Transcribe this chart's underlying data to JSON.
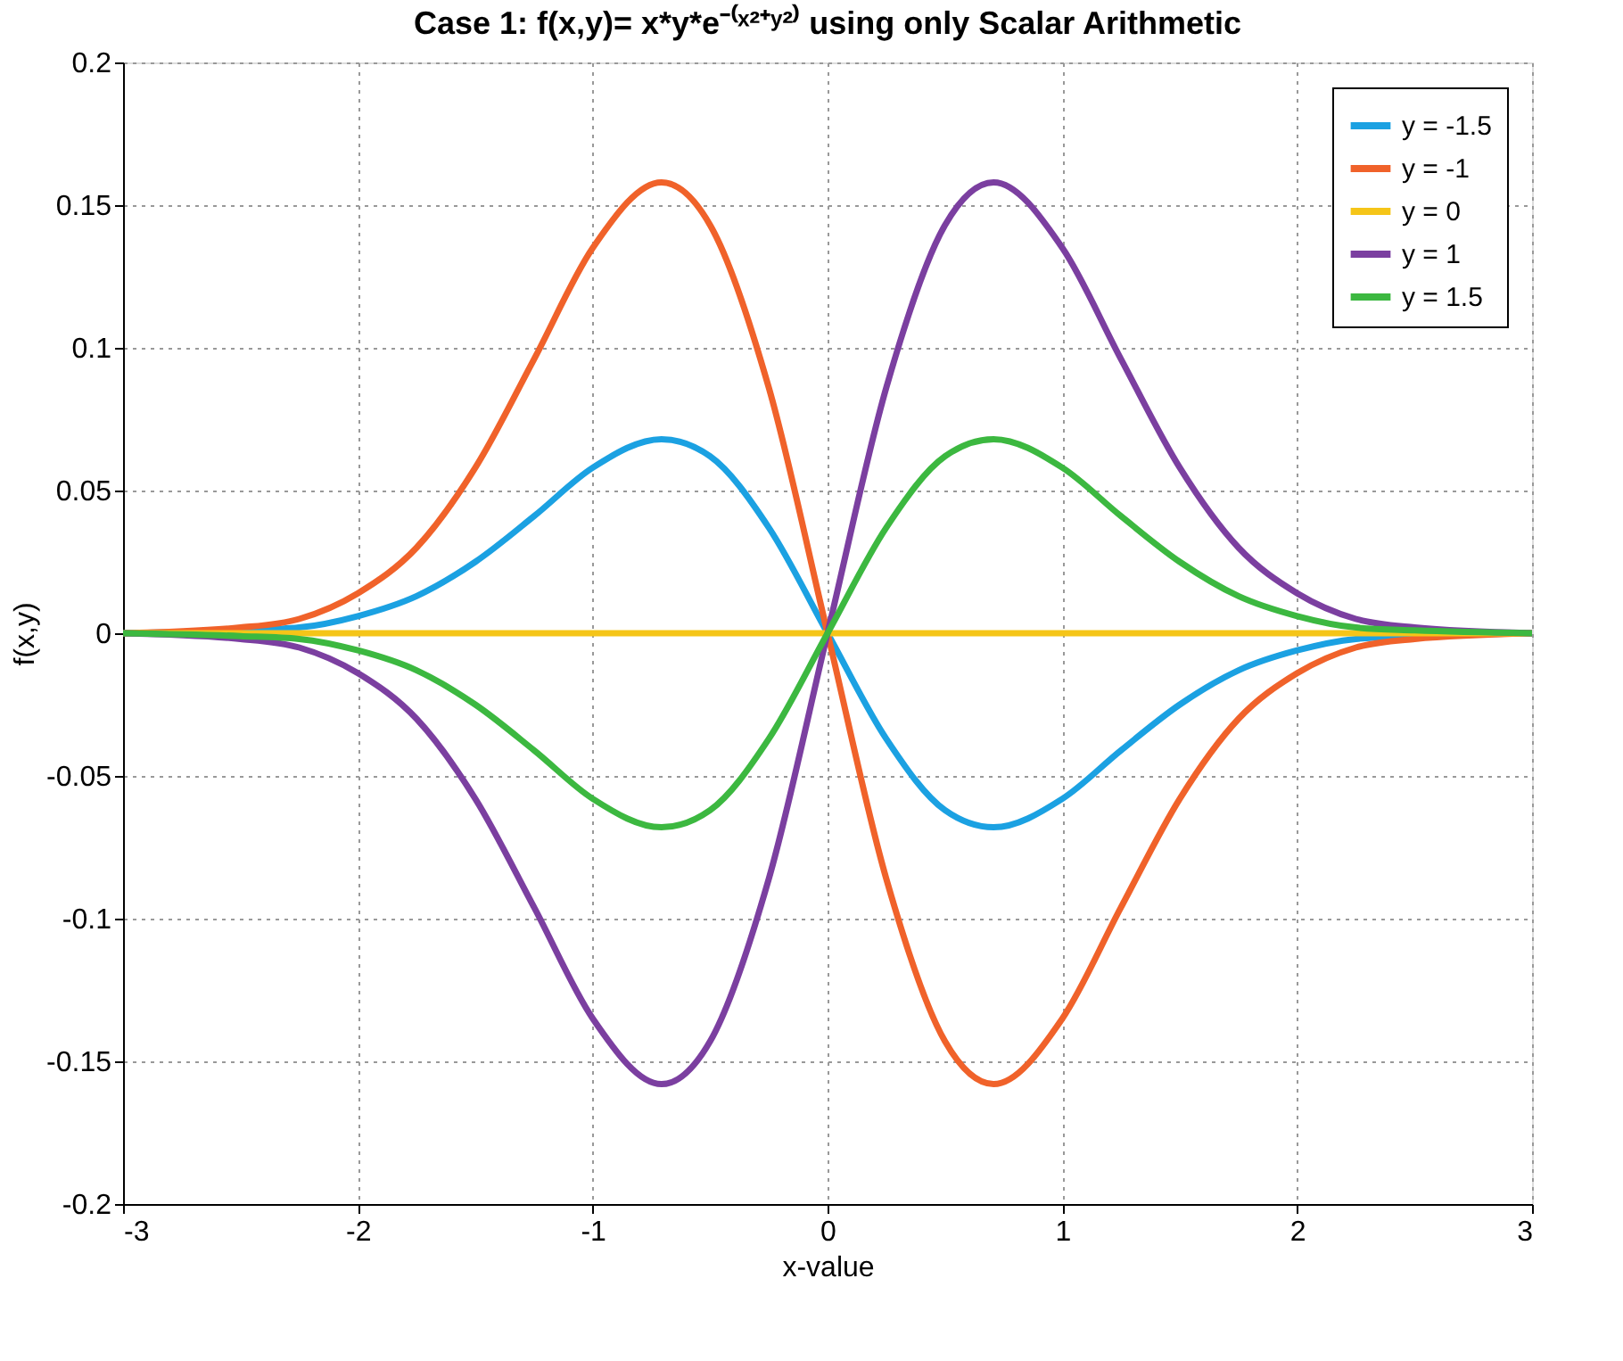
{
  "chart_data": {
    "type": "line",
    "title": "Case 1:  f(x,y)= x*y*e⁻⁽ˣ²⁺ʸ²⁾ using only Scalar Arithmetic",
    "xlabel": "x-value",
    "ylabel": "f(x,y)",
    "x": [
      -3,
      -2.5,
      -2.25,
      -2,
      -1.75,
      -1.5,
      -1.25,
      -1,
      -0.707,
      -0.5,
      -0.25,
      0,
      0.25,
      0.5,
      0.707,
      1,
      1.25,
      1.5,
      1.75,
      2,
      2.25,
      2.5,
      3
    ],
    "series": [
      {
        "name": "y = -1.5",
        "color": "#1ba1e2",
        "values": [
          0,
          0.001,
          0.002,
          0.006,
          0.013,
          0.025,
          0.041,
          0.058,
          0.068,
          0.062,
          0.037,
          0,
          -0.037,
          -0.062,
          -0.068,
          -0.058,
          -0.041,
          -0.025,
          -0.013,
          -0.006,
          -0.002,
          -0.001,
          0
        ]
      },
      {
        "name": "y = -1",
        "color": "#f0622a",
        "values": [
          0,
          0.002,
          0.005,
          0.014,
          0.03,
          0.058,
          0.096,
          0.135,
          0.158,
          0.143,
          0.086,
          0,
          -0.086,
          -0.143,
          -0.158,
          -0.135,
          -0.096,
          -0.058,
          -0.03,
          -0.014,
          -0.005,
          -0.002,
          0
        ]
      },
      {
        "name": "y = 0",
        "color": "#f5c518",
        "values": [
          0,
          0,
          0,
          0,
          0,
          0,
          0,
          0,
          0,
          0,
          0,
          0,
          0,
          0,
          0,
          0,
          0,
          0,
          0,
          0,
          0,
          0,
          0
        ]
      },
      {
        "name": "y = 1",
        "color": "#7b3fa0",
        "values": [
          0,
          -0.002,
          -0.005,
          -0.014,
          -0.03,
          -0.058,
          -0.096,
          -0.135,
          -0.158,
          -0.143,
          -0.086,
          0,
          0.086,
          0.143,
          0.158,
          0.135,
          0.096,
          0.058,
          0.03,
          0.014,
          0.005,
          0.002,
          0
        ]
      },
      {
        "name": "y = 1.5",
        "color": "#3cb840",
        "values": [
          0,
          -0.001,
          -0.002,
          -0.006,
          -0.013,
          -0.025,
          -0.041,
          -0.058,
          -0.068,
          -0.062,
          -0.037,
          0,
          0.037,
          0.062,
          0.068,
          0.058,
          0.041,
          0.025,
          0.013,
          0.006,
          0.002,
          0.001,
          0
        ]
      }
    ],
    "xlim": [
      -3,
      3
    ],
    "xticks": [
      -3,
      -2,
      -1,
      0,
      1,
      2,
      3
    ],
    "ylim": [
      -0.2,
      0.2
    ],
    "yticks": [
      -0.2,
      -0.15,
      -0.1,
      -0.05,
      0,
      0.05,
      0.1,
      0.15,
      0.2
    ],
    "grid": true,
    "legend": "top right",
    "marker": "none",
    "line_style": "solid"
  }
}
